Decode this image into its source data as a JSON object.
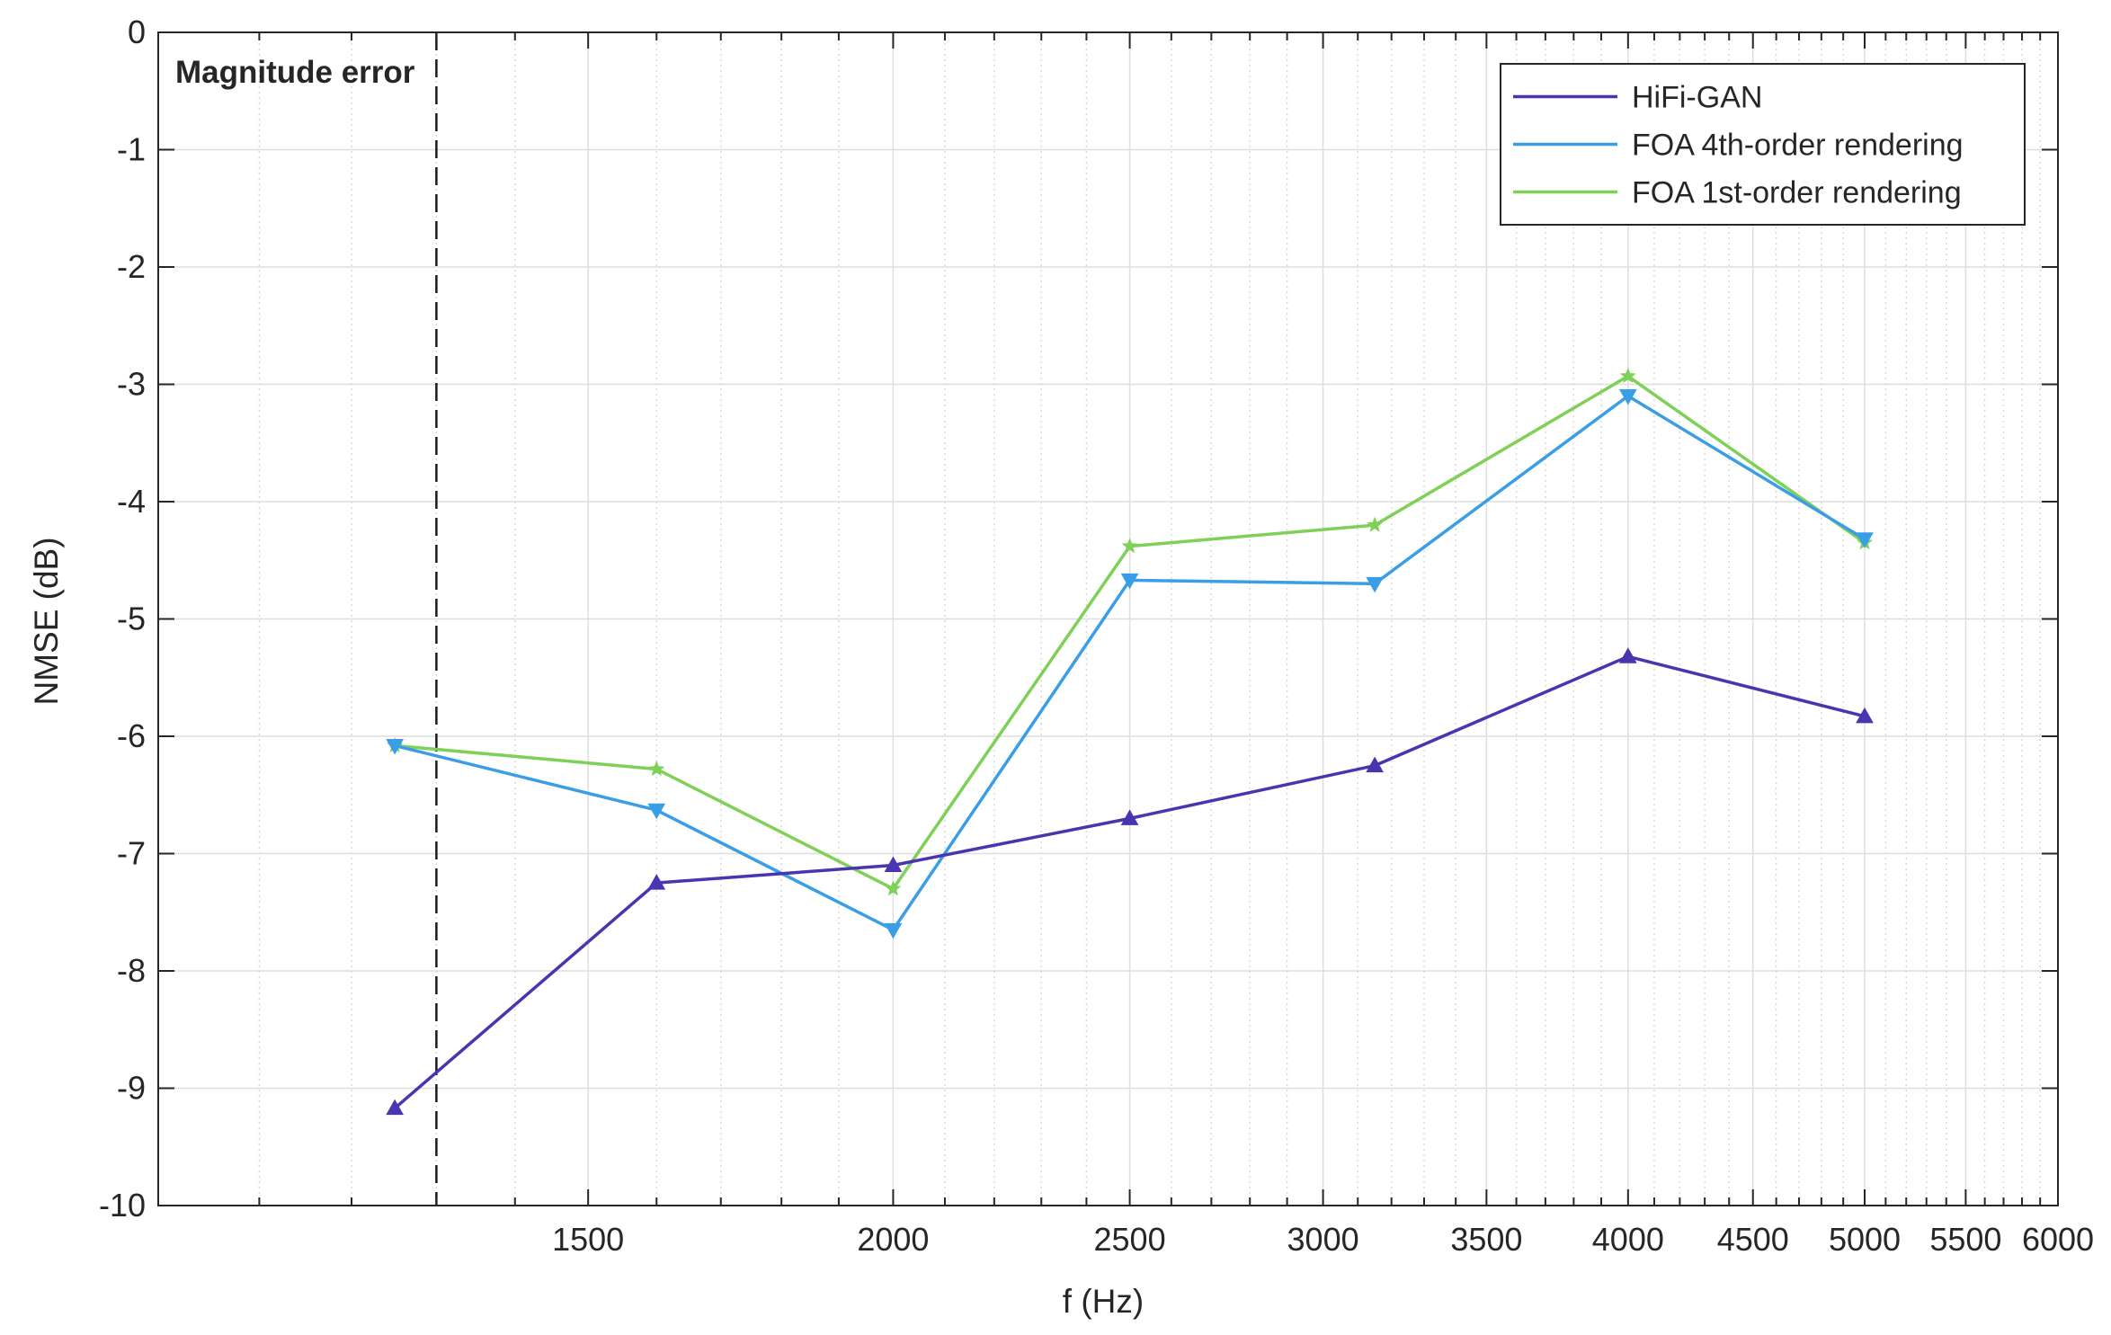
{
  "chart_data": {
    "type": "line",
    "title": "Magnitude error",
    "xlabel": "f (Hz)",
    "ylabel": "NMSE (dB)",
    "x_scale": "log",
    "xlim": [
      1000,
      6000
    ],
    "ylim": [
      -10,
      0
    ],
    "x_ticks": [
      1500,
      2000,
      2500,
      3000,
      3500,
      4000,
      4500,
      5000,
      5500,
      6000
    ],
    "x_tick_labels": [
      "1500",
      "2000",
      "2500",
      "3000",
      "3500",
      "4000",
      "4500",
      "5000",
      "5500",
      "6000"
    ],
    "y_ticks": [
      0,
      -1,
      -2,
      -3,
      -4,
      -5,
      -6,
      -7,
      -8,
      -9,
      -10
    ],
    "y_tick_labels": [
      "0",
      "-1",
      "-2",
      "-3",
      "-4",
      "-5",
      "-6",
      "-7",
      "-8",
      "-9",
      "-10"
    ],
    "grid": true,
    "minor_grid": true,
    "legend_position": "top-right",
    "reference_line": {
      "x": 1300,
      "style": "dashed"
    },
    "x": [
      1250,
      1600,
      2000,
      2500,
      3150,
      4000,
      5000
    ],
    "series": [
      {
        "name": "HiFi-GAN",
        "color": "#4a35b0",
        "marker": "triangle-up",
        "values": [
          -9.17,
          -7.25,
          -7.1,
          -6.7,
          -6.25,
          -5.32,
          -5.83
        ]
      },
      {
        "name": "FOA 4th-order rendering",
        "color": "#3a9ee6",
        "marker": "triangle-down",
        "values": [
          -6.08,
          -6.63,
          -7.65,
          -4.67,
          -4.7,
          -3.1,
          -4.32
        ]
      },
      {
        "name": "FOA 1st-order rendering",
        "color": "#7ed057",
        "marker": "star",
        "values": [
          -6.08,
          -6.28,
          -7.3,
          -4.38,
          -4.2,
          -2.93,
          -4.35
        ]
      }
    ]
  }
}
